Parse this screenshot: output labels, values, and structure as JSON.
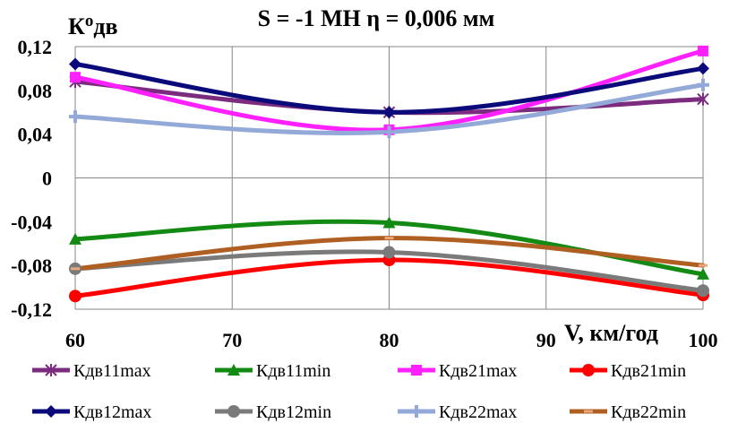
{
  "chart_data": {
    "type": "line",
    "title": "S = -1 МН  η = 0,006 мм",
    "ylabel_main": "К",
    "ylabel_sup": "о",
    "ylabel_sub": "дв",
    "xlabel": "V, км/год",
    "x_ticks": [
      60,
      70,
      80,
      90,
      100
    ],
    "x_tick_labels": [
      "60",
      "70",
      "80",
      "90",
      "100"
    ],
    "y_ticks": [
      -0.12,
      -0.08,
      -0.04,
      0,
      0.04,
      0.08,
      0.12
    ],
    "y_tick_labels": [
      "-0,12",
      "-0,08",
      "-0,04",
      "0",
      "0,04",
      "0,08",
      "0,12"
    ],
    "xlim": [
      60,
      100
    ],
    "ylim": [
      -0.12,
      0.12
    ],
    "grid": "vertical",
    "legend_position": "bottom",
    "x": [
      60,
      80,
      100
    ],
    "series": [
      {
        "name": "Кдв11max",
        "color": "#7B2C7E",
        "marker": "star",
        "values": [
          0.088,
          0.06,
          0.072
        ]
      },
      {
        "name": "Кдв11min",
        "color": "#138A13",
        "marker": "triangle",
        "values": [
          -0.056,
          -0.041,
          -0.088
        ]
      },
      {
        "name": "Кдв21max",
        "color": "#FF20FF",
        "marker": "square",
        "values": [
          0.092,
          0.044,
          0.116
        ]
      },
      {
        "name": "Кдв21min",
        "color": "#FF0000",
        "marker": "circle",
        "values": [
          -0.108,
          -0.075,
          -0.107
        ]
      },
      {
        "name": "Кдв12max",
        "color": "#0A0A7A",
        "marker": "diamond",
        "values": [
          0.104,
          0.06,
          0.1
        ]
      },
      {
        "name": "Кдв12min",
        "color": "#7A7A7A",
        "marker": "circle",
        "values": [
          -0.083,
          -0.068,
          -0.103
        ]
      },
      {
        "name": "Кдв22max",
        "color": "#93A9D8",
        "marker": "plus",
        "values": [
          0.056,
          0.042,
          0.085
        ]
      },
      {
        "name": "Кдв22min",
        "color": "#B05F22",
        "marker": "dash",
        "values": [
          -0.083,
          -0.055,
          -0.08
        ]
      }
    ]
  }
}
